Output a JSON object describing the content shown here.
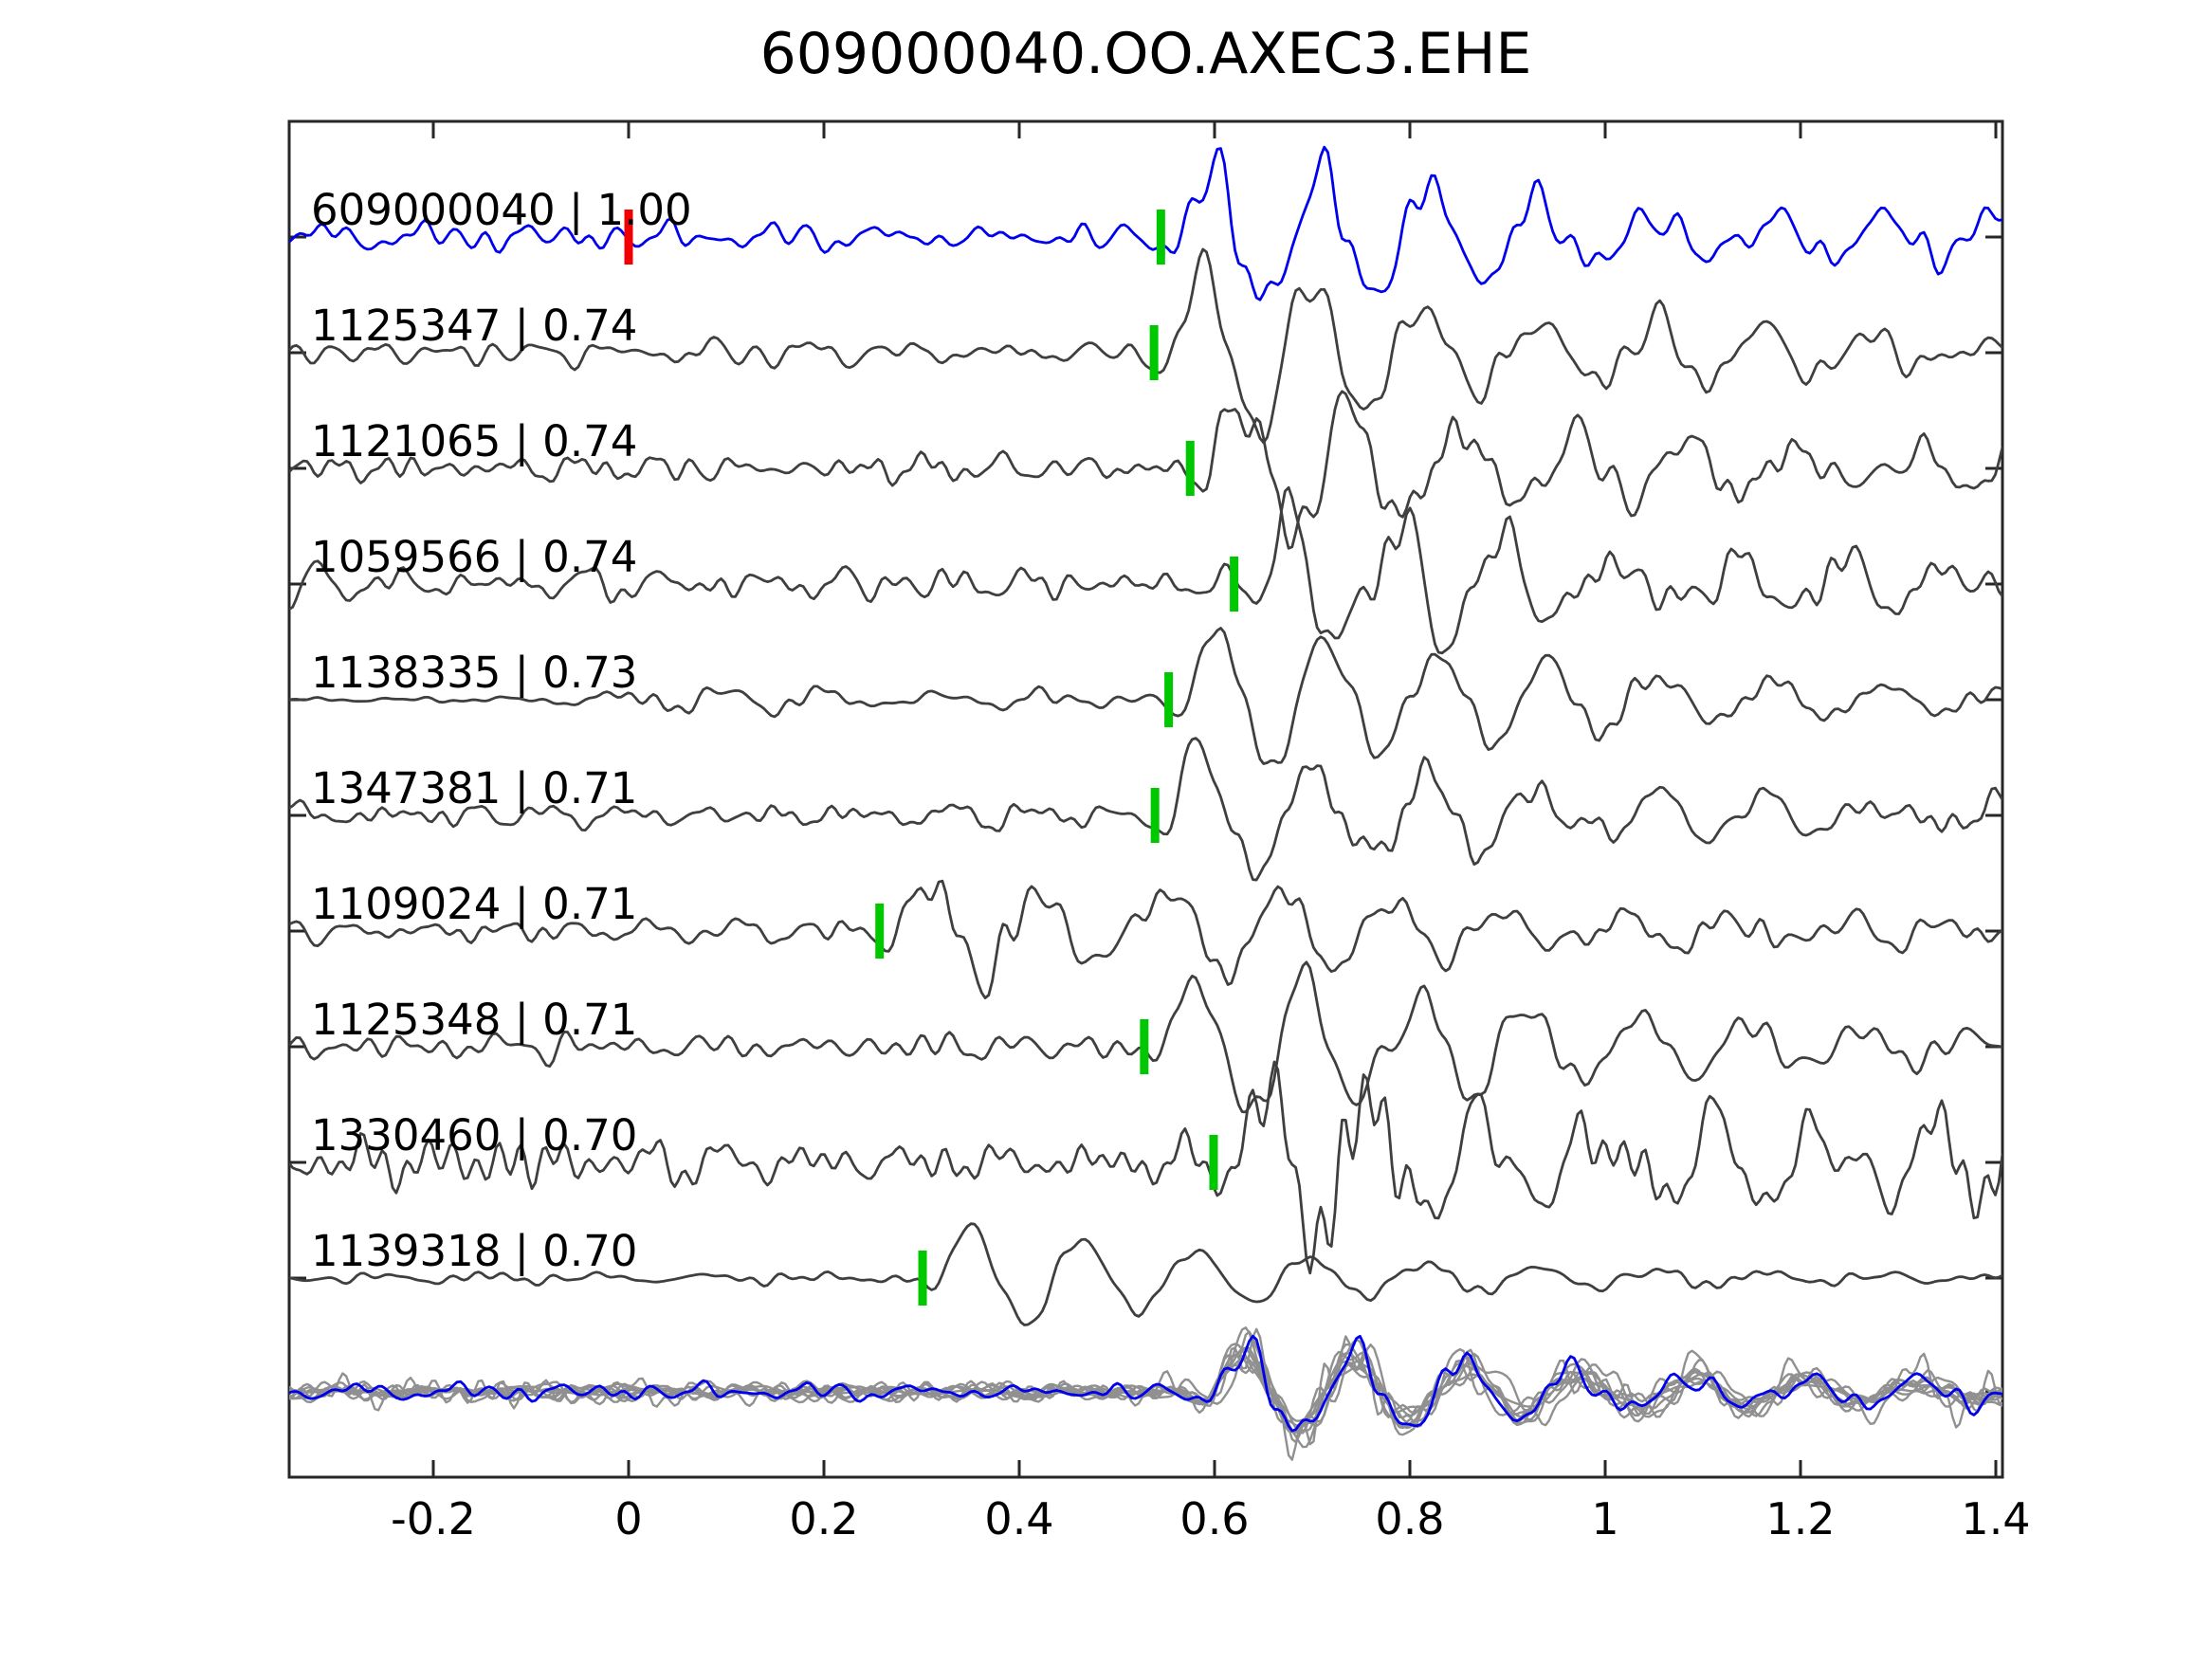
{
  "title": "609000040.OO.AXEC3.EHE",
  "colors": {
    "background": "#ffffff",
    "axis": "#262626",
    "text": "#000000",
    "reference_trace": "#0000ee",
    "match_trace": "#3f3f3f",
    "pick_marker": "#00c800",
    "origin_marker": "#f20000",
    "overlay_gray": "#909090"
  },
  "chart_data": {
    "type": "line",
    "title": "609000040.OO.AXEC3.EHE",
    "x_axis": {
      "xlim": [
        -0.3476,
        1.4068
      ],
      "tick_values": [
        -0.2,
        0,
        0.2,
        0.4,
        0.6,
        0.8,
        1.0,
        1.2,
        1.4
      ],
      "tick_labels": [
        "-0.2",
        "0",
        "0.2",
        "0.4",
        "0.6",
        "0.8",
        "1",
        "1.2",
        "1.4"
      ],
      "ticks_direction": "in"
    },
    "traces": [
      {
        "id": "609000040",
        "correlation": "1.00",
        "label": "609000040 | 1.00",
        "role": "reference",
        "pick_time": 0.545,
        "origin_time": 0.0,
        "render": {
          "seed": 101,
          "noise_amp": 15,
          "pre_amp": 15,
          "flat_end": null,
          "arrival_amp": 70,
          "decay": 1.7,
          "post_boost": 1.5,
          "coda_tau": 0.5
        }
      },
      {
        "id": "1125347",
        "correlation": "0.74",
        "label": "1125347 | 0.74",
        "role": "match",
        "pick_time": 0.538,
        "render": {
          "seed": 202,
          "noise_amp": 12,
          "pre_amp": 12,
          "flat_end": null,
          "arrival_amp": 92,
          "decay": 2.2,
          "post_boost": 1.8,
          "coda_tau": 0.4
        }
      },
      {
        "id": "1121065",
        "correlation": "0.74",
        "label": "1121065 | 0.74",
        "role": "match",
        "pick_time": 0.575,
        "render": {
          "seed": 303,
          "noise_amp": 13,
          "pre_amp": 13,
          "flat_end": null,
          "arrival_amp": 78,
          "decay": 2.1,
          "post_boost": 1.8,
          "coda_tau": 0.4
        }
      },
      {
        "id": "1059566",
        "correlation": "0.74",
        "label": "1059566 | 0.74",
        "role": "match",
        "pick_time": 0.62,
        "render": {
          "seed": 404,
          "noise_amp": 17,
          "pre_amp": 17,
          "flat_end": null,
          "arrival_amp": 66,
          "decay": 2.0,
          "post_boost": 1.6,
          "coda_tau": 0.45
        }
      },
      {
        "id": "1138335",
        "correlation": "0.73",
        "label": "1138335 | 0.73",
        "role": "match",
        "pick_time": 0.553,
        "render": {
          "seed": 505,
          "noise_amp": 10,
          "pre_amp": 2.5,
          "flat_end": -0.12,
          "arrival_amp": 82,
          "decay": 1.9,
          "post_boost": 1.2,
          "coda_tau": 0.5
        }
      },
      {
        "id": "1347381",
        "correlation": "0.71",
        "label": "1347381 | 0.71",
        "role": "match",
        "pick_time": 0.539,
        "render": {
          "seed": 606,
          "noise_amp": 11,
          "pre_amp": 11,
          "flat_end": null,
          "arrival_amp": 80,
          "decay": 2.3,
          "post_boost": 1.7,
          "coda_tau": 0.45
        }
      },
      {
        "id": "1109024",
        "correlation": "0.71",
        "label": "1109024 | 0.71",
        "role": "match",
        "pick_time": 0.257,
        "render": {
          "seed": 707,
          "noise_amp": 12,
          "pre_amp": 12,
          "flat_end": null,
          "arrival_amp": 58,
          "decay": 2.8,
          "post_boost": 1.5,
          "coda_tau": 0.5,
          "second_arrival": {
            "t": 0.52,
            "amp": 38,
            "decay": 1.8
          }
        }
      },
      {
        "id": "1125348",
        "correlation": "0.71",
        "label": "1125348 | 0.71",
        "role": "match",
        "pick_time": 0.528,
        "render": {
          "seed": 808,
          "noise_amp": 12,
          "pre_amp": 12,
          "flat_end": null,
          "arrival_amp": 88,
          "decay": 2.2,
          "post_boost": 1.8,
          "coda_tau": 0.4
        }
      },
      {
        "id": "1330460",
        "correlation": "0.70",
        "label": "1330460 | 0.70",
        "role": "match",
        "pick_time": 0.599,
        "render": {
          "seed": 909,
          "noise_amp": 21,
          "pre_amp": 21,
          "flat_end": null,
          "arrival_amp": 66,
          "decay": 1.2,
          "post_boost": 1.9,
          "coda_tau": 0.8
        }
      },
      {
        "id": "1139318",
        "correlation": "0.70",
        "label": "1139318 | 0.70",
        "role": "match",
        "pick_time": 0.301,
        "render": {
          "seed": 1010,
          "noise_amp": 6,
          "pre_amp": 5,
          "flat_end": null,
          "arrival_amp": 66,
          "decay": 3.0,
          "post_boost": 1.0,
          "coda_tau": 0.35
        }
      }
    ],
    "overlay": {
      "description": "all traces overlaid, aligned on pick, reference trace in blue on top",
      "align_time": 0.585,
      "scale": 0.62
    },
    "layout_hints": {
      "grid": false,
      "legend": false,
      "marker_height_px": 58,
      "marker_width_px": 9
    }
  }
}
